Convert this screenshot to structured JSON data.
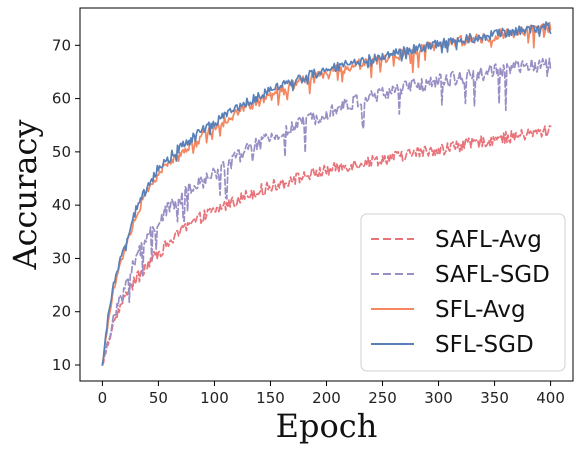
{
  "chart_data": {
    "type": "line",
    "title": "",
    "xlabel": "Epoch",
    "ylabel": "Accuracy",
    "xlim": [
      -20,
      420
    ],
    "ylim": [
      7,
      77
    ],
    "xticks": [
      0,
      50,
      100,
      150,
      200,
      250,
      300,
      350,
      400
    ],
    "yticks": [
      10,
      20,
      30,
      40,
      50,
      60,
      70
    ],
    "grid": false,
    "legend_position": "lower-right",
    "series": [
      {
        "name": "SAFL-Avg",
        "color": "#e8737a",
        "dash": "dashed",
        "noise": 1.1,
        "dips": 0.4,
        "x": [
          0,
          5,
          10,
          20,
          30,
          40,
          50,
          60,
          70,
          80,
          90,
          100,
          110,
          120,
          130,
          140,
          150,
          160,
          170,
          180,
          190,
          200,
          220,
          240,
          260,
          280,
          300,
          320,
          340,
          360,
          380,
          400
        ],
        "y": [
          10,
          14,
          18,
          23,
          26,
          29,
          31,
          33,
          35,
          36.5,
          38,
          39,
          40,
          41,
          42,
          42.8,
          43.5,
          44.2,
          44.8,
          45.4,
          46,
          46.5,
          47.5,
          48.3,
          49,
          49.8,
          50.5,
          51.2,
          52,
          52.7,
          53.3,
          54
        ]
      },
      {
        "name": "SAFL-SGD",
        "color": "#9a8fc4",
        "dash": "dashed",
        "noise": 1.4,
        "dips": 4.5,
        "x": [
          0,
          5,
          10,
          20,
          30,
          40,
          50,
          60,
          70,
          80,
          90,
          100,
          110,
          120,
          130,
          140,
          150,
          160,
          170,
          180,
          190,
          200,
          220,
          240,
          260,
          280,
          300,
          320,
          340,
          360,
          380,
          400
        ],
        "y": [
          10,
          14,
          19,
          25,
          30,
          34,
          37,
          39.5,
          41.5,
          43,
          44.5,
          46,
          47.5,
          49,
          50.5,
          51.5,
          52.5,
          53.5,
          54.5,
          55.5,
          56.5,
          57.5,
          59,
          60.3,
          61.5,
          62.5,
          63.3,
          64,
          64.8,
          65.5,
          66,
          66.5
        ]
      },
      {
        "name": "SFL-Avg",
        "color": "#f4875f",
        "dash": "solid",
        "noise": 1.0,
        "dips": 2.0,
        "x": [
          0,
          5,
          10,
          20,
          30,
          40,
          50,
          60,
          70,
          80,
          90,
          100,
          110,
          120,
          130,
          140,
          150,
          160,
          170,
          180,
          190,
          200,
          220,
          240,
          260,
          280,
          300,
          320,
          340,
          360,
          380,
          400
        ],
        "y": [
          10,
          18,
          24,
          32,
          38,
          42.5,
          46,
          48,
          50,
          51.5,
          53,
          54.5,
          56,
          57.5,
          58.5,
          59.5,
          60.5,
          61.5,
          62.5,
          63.3,
          64,
          64.7,
          66,
          67,
          68,
          69,
          70,
          70.8,
          71.5,
          72.2,
          72.8,
          73.5
        ]
      },
      {
        "name": "SFL-SGD",
        "color": "#5a80b8",
        "dash": "solid",
        "noise": 0.9,
        "dips": 0.9,
        "x": [
          0,
          5,
          10,
          20,
          30,
          40,
          50,
          60,
          70,
          80,
          90,
          100,
          110,
          120,
          130,
          140,
          150,
          160,
          170,
          180,
          190,
          200,
          220,
          240,
          260,
          280,
          300,
          320,
          340,
          360,
          380,
          400
        ],
        "y": [
          10,
          19,
          25,
          33,
          39,
          43.5,
          47,
          49,
          51,
          52.5,
          54,
          55.5,
          57,
          58.3,
          59.5,
          60.5,
          61.5,
          62.5,
          63.3,
          64,
          64.7,
          65.3,
          66.5,
          67.5,
          68.5,
          69.3,
          70.2,
          71,
          71.7,
          72.4,
          73,
          73.7
        ]
      }
    ]
  }
}
